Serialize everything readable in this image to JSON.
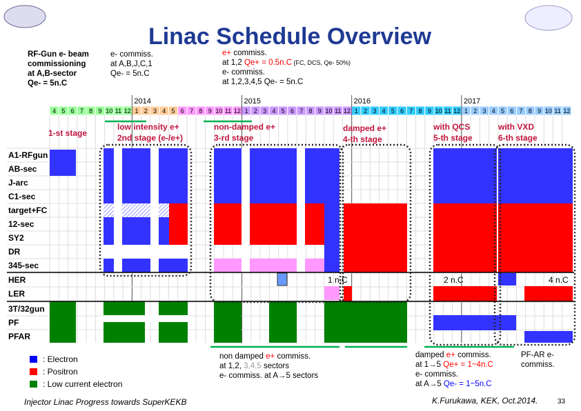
{
  "header": {
    "title": "Linac Schedule Overview"
  },
  "top_notes": [
    {
      "lines": [
        [
          "RF-Gun e- beam"
        ],
        [
          "commissioning"
        ],
        [
          "at A,B-sector"
        ],
        [
          "Qe- = 5n.C"
        ]
      ]
    },
    {
      "lines": [
        [
          "e- commiss."
        ],
        [
          "at A,B,J,C,1"
        ],
        [
          "Qe- = 5n.C"
        ]
      ]
    },
    {
      "lines": [
        [
          "e+",
          " commiss."
        ],
        [
          "at 1,2 ",
          "Qe+ = 0.5n.C",
          " (FC, DCS, Qe- 50%)"
        ],
        [
          "e- commiss."
        ],
        [
          "at 1,2,3,4,5 Qe- = 5n.C"
        ]
      ]
    }
  ],
  "timeline": {
    "years": [
      "2014",
      "2015",
      "2016",
      "2017"
    ],
    "months": [
      4,
      5,
      6,
      7,
      8,
      9,
      10,
      11,
      12,
      1,
      2,
      3,
      4,
      5,
      6,
      7,
      8,
      9,
      10,
      11,
      12,
      1,
      2,
      3,
      4,
      5,
      6,
      7,
      8,
      9,
      10,
      11,
      12,
      1,
      2,
      3,
      4,
      5,
      6,
      7,
      8,
      9,
      10,
      11,
      12,
      1,
      2,
      3,
      4,
      5,
      6,
      7,
      8,
      9,
      10,
      11,
      12
    ]
  },
  "stages": [
    [
      "1-st stage"
    ],
    [
      "low intensity e+",
      "2nd stage (e-/e+)"
    ],
    [
      "non-damped e+",
      "3-rd stage"
    ],
    [
      "damped e+",
      "4-th stage"
    ],
    [
      "with QCS",
      "5-th stage"
    ],
    [
      "with VXD",
      "6-th stage"
    ]
  ],
  "rows": [
    "A1-RFgun",
    "AB-sec",
    "J-arc",
    "C1-sec",
    "target+FC",
    "12-sec",
    "SY2",
    "DR",
    "345-sec",
    "HER",
    "LER",
    "3T/32gun",
    "PF",
    "PFAR"
  ],
  "charges": [
    "1 n.C",
    "2 n.C",
    "4 n.C"
  ],
  "legend": [
    ": Electron",
    ": Positron",
    ": Low current electron"
  ],
  "bottom_notes": [
    {
      "lines": [
        [
          "non damped ",
          "e+",
          " commiss."
        ],
        [
          "at 1,2, ",
          "3,4,5",
          " sectors"
        ],
        [
          "e- commiss.  at A→5 sectors"
        ]
      ]
    },
    {
      "lines": [
        [
          "damped ",
          "e+",
          " commiss."
        ],
        [
          "at 1→5 ",
          "Qe+ = 1~4n.C"
        ],
        [
          "e- commiss."
        ],
        [
          "at A→5 ",
          "Qe- = 1~5n.C"
        ]
      ]
    },
    {
      "lines": [
        [
          "PF-AR e-"
        ],
        [
          "commiss."
        ]
      ]
    }
  ],
  "footer": {
    "left": "Injector Linac Progress towards SuperKEKB",
    "right": "K.Furukawa, KEK, Oct.2014.",
    "page": "33"
  }
}
